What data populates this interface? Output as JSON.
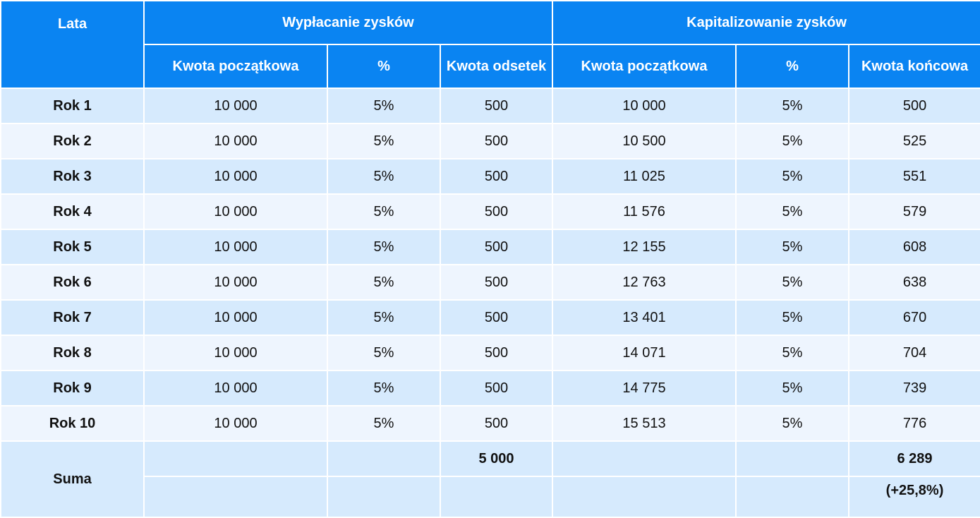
{
  "header": {
    "years_label": "Lata",
    "group_payout": "Wypłacanie zysków",
    "group_capitalize": "Kapitalizowanie zysków",
    "payout_cols": [
      "Kwota początkowa",
      "%",
      "Kwota odsetek"
    ],
    "capitalize_cols": [
      "Kwota początkowa",
      "%",
      "Kwota końcowa"
    ]
  },
  "rows": [
    {
      "year": "Rok 1",
      "payout_start": "10 000",
      "payout_pct": "5%",
      "payout_interest": "500",
      "cap_start": "10 000",
      "cap_pct": "5%",
      "cap_end": "500"
    },
    {
      "year": "Rok 2",
      "payout_start": "10 000",
      "payout_pct": "5%",
      "payout_interest": "500",
      "cap_start": "10 500",
      "cap_pct": "5%",
      "cap_end": "525"
    },
    {
      "year": "Rok 3",
      "payout_start": "10 000",
      "payout_pct": "5%",
      "payout_interest": "500",
      "cap_start": "11 025",
      "cap_pct": "5%",
      "cap_end": "551"
    },
    {
      "year": "Rok 4",
      "payout_start": "10 000",
      "payout_pct": "5%",
      "payout_interest": "500",
      "cap_start": "11 576",
      "cap_pct": "5%",
      "cap_end": "579"
    },
    {
      "year": "Rok 5",
      "payout_start": "10 000",
      "payout_pct": "5%",
      "payout_interest": "500",
      "cap_start": "12 155",
      "cap_pct": "5%",
      "cap_end": "608"
    },
    {
      "year": "Rok 6",
      "payout_start": "10 000",
      "payout_pct": "5%",
      "payout_interest": "500",
      "cap_start": "12 763",
      "cap_pct": "5%",
      "cap_end": "638"
    },
    {
      "year": "Rok 7",
      "payout_start": "10 000",
      "payout_pct": "5%",
      "payout_interest": "500",
      "cap_start": "13 401",
      "cap_pct": "5%",
      "cap_end": "670"
    },
    {
      "year": "Rok 8",
      "payout_start": "10 000",
      "payout_pct": "5%",
      "payout_interest": "500",
      "cap_start": "14 071",
      "cap_pct": "5%",
      "cap_end": "704"
    },
    {
      "year": "Rok 9",
      "payout_start": "10 000",
      "payout_pct": "5%",
      "payout_interest": "500",
      "cap_start": "14 775",
      "cap_pct": "5%",
      "cap_end": "739"
    },
    {
      "year": "Rok 10",
      "payout_start": "10 000",
      "payout_pct": "5%",
      "payout_interest": "500",
      "cap_start": "15 513",
      "cap_pct": "5%",
      "cap_end": "776"
    }
  ],
  "summary": {
    "label": "Suma",
    "payout_total": "5 000",
    "capitalize_total": "6 289",
    "capitalize_gain": "(+25,8%)"
  },
  "colors": {
    "header": "#0a84f2",
    "row_dark": "#d6eafd",
    "row_light": "#eef5fe",
    "border": "#ffffff"
  }
}
